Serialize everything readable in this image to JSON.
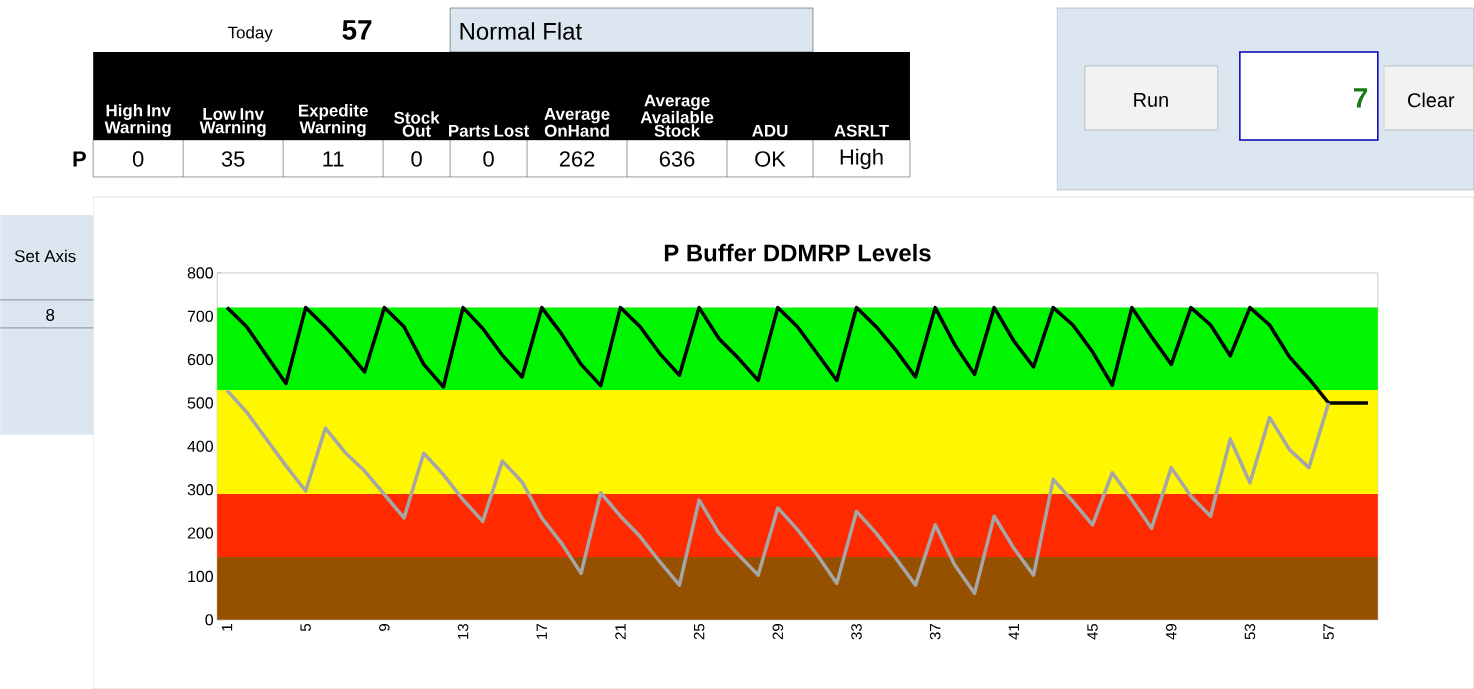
{
  "chart_data": {
    "type": "line",
    "title": "P Buffer DDMRP Levels",
    "x": [
      1,
      2,
      3,
      4,
      5,
      6,
      7,
      8,
      9,
      10,
      11,
      12,
      13,
      14,
      15,
      16,
      17,
      18,
      19,
      20,
      21,
      22,
      23,
      24,
      25,
      26,
      27,
      28,
      29,
      30,
      31,
      32,
      33,
      34,
      35,
      36,
      37,
      38,
      39,
      40,
      41,
      42,
      43,
      44,
      45,
      46,
      47,
      48,
      49,
      50,
      51,
      52,
      53,
      54,
      55,
      56,
      57,
      58,
      59
    ],
    "series": [
      {
        "color": "#000000",
        "values": [
          720,
          676,
          610,
          545,
          720,
          676,
          626,
          572,
          720,
          676,
          589,
          537,
          720,
          672,
          610,
          560,
          720,
          660,
          589,
          540,
          720,
          676,
          614,
          564,
          720,
          649,
          603,
          552,
          720,
          676,
          614,
          552,
          720,
          676,
          622,
          560,
          720,
          634,
          566,
          720,
          643,
          583,
          720,
          680,
          618,
          541,
          720,
          653,
          589,
          720,
          680,
          609,
          720,
          680,
          607,
          556,
          500,
          500,
          500
        ]
      },
      {
        "color": "#a6a6a6",
        "values": [
          529,
          479,
          417,
          355,
          297,
          442,
          386,
          343,
          289,
          235,
          384,
          335,
          277,
          227,
          366,
          318,
          235,
          177,
          107,
          293,
          239,
          192,
          134,
          80,
          276,
          200,
          150,
          103,
          258,
          208,
          150,
          84,
          250,
          200,
          142,
          80,
          219,
          126,
          61,
          239,
          165,
          103,
          324,
          273,
          219,
          339,
          277,
          211,
          351,
          285,
          239,
          417,
          316,
          467,
          393,
          351,
          500,
          null,
          null
        ]
      }
    ],
    "bands": [
      {
        "axis": "y",
        "from": 0,
        "to": 145,
        "color": "#955000"
      },
      {
        "axis": "y",
        "from": 145,
        "to": 290,
        "color": "#ff2a00"
      },
      {
        "axis": "y",
        "from": 290,
        "to": 530,
        "color": "#fff700"
      },
      {
        "axis": "y",
        "from": 530,
        "to": 720,
        "color": "#00f500"
      }
    ],
    "xlim": [
      0.5,
      59.5
    ],
    "xticks": [
      1,
      5,
      9,
      13,
      17,
      21,
      25,
      29,
      33,
      37,
      41,
      45,
      49,
      53,
      57
    ],
    "ylim": [
      0,
      800
    ],
    "yticks": [
      0,
      100,
      200,
      300,
      400,
      500,
      600,
      700,
      800
    ],
    "grid": false,
    "legend": false,
    "marker": "none",
    "line_style": "solid",
    "annotations": [
      "Today",
      "57",
      "Normal Flat",
      "High Inv Warning",
      "Low Inv Warning",
      "Expedite Warning",
      "Stock Out",
      "Parts Lost",
      "Average OnHand",
      "Average Available Stock",
      "ADU",
      "ASRLT",
      "P",
      "0",
      "35",
      "11",
      "0",
      "0",
      "262",
      "636",
      "OK",
      "High",
      "Run",
      "7",
      "Clear",
      "Set Axis",
      "8"
    ]
  }
}
